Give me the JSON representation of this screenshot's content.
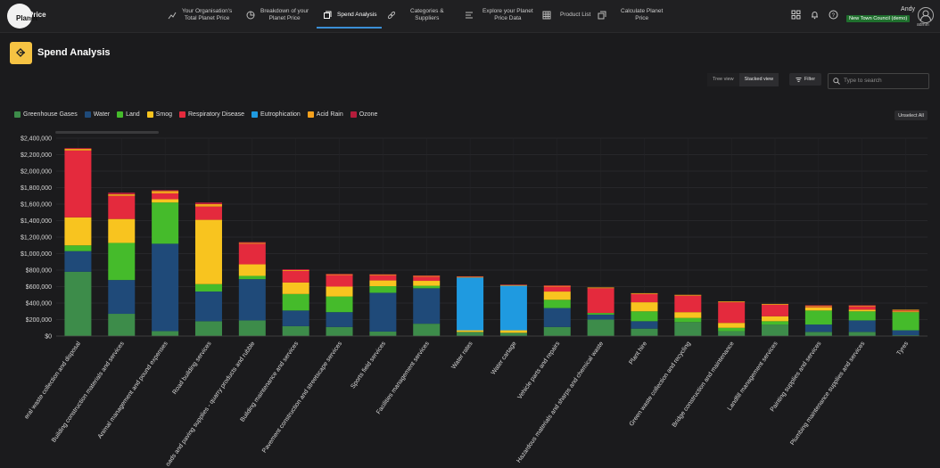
{
  "header": {
    "logo_text": "Planet",
    "logo_text2": "Price",
    "nav": [
      {
        "label_1": "Your Organisation's",
        "label_2": "Total Planet Price",
        "icon": "line-chart-icon"
      },
      {
        "label_1": "Breakdown of your",
        "label_2": "Planet Price",
        "icon": "pie-chart-icon"
      },
      {
        "label_1": "Spend Analysis",
        "label_2": "",
        "icon": "spend-icon"
      },
      {
        "label_1": "Categories &",
        "label_2": "Suppliers",
        "icon": "link-icon"
      },
      {
        "label_1": "Explore your Planet",
        "label_2": "Price Data",
        "icon": "data-icon"
      },
      {
        "label_1": "Product List",
        "label_2": "",
        "icon": "grid-icon"
      },
      {
        "label_1": "Calculate Planet",
        "label_2": "Price",
        "icon": "copy-icon"
      }
    ],
    "user_name": "Andy",
    "council_badge": "New Town Council (demo)",
    "user_role": "admin"
  },
  "page": {
    "title": "Spend Analysis",
    "view_options": [
      "Tree view",
      "Stacked view"
    ],
    "selected_view": "Stacked view",
    "filter_label": "Filter",
    "search_placeholder": "Type to search",
    "unselect_label": "Unselect All"
  },
  "colors": {
    "Greenhouse Gases": "#3d8c4a",
    "Water": "#1f4a79",
    "Land": "#45bb2b",
    "Smog": "#f8c41f",
    "Respiratory Disease": "#e42a3d",
    "Eutrophication": "#1f9ae0",
    "Acid Rain": "#f5a11d",
    "Ozone": "#b51c3b"
  },
  "chart_data": {
    "type": "bar",
    "stacked": true,
    "ylim": [
      0,
      2400000
    ],
    "yticks": [
      "$0",
      "$200,000",
      "$400,000",
      "$600,000",
      "$800,000",
      "$1,000,000",
      "$1,200,000",
      "$1,400,000",
      "$1,600,000",
      "$1,800,000",
      "$2,000,000",
      "$2,200,000",
      "$2,400,000"
    ],
    "categories": [
      "eral waste collection and disposal",
      "Building construction materials and services",
      "Animal management and pound expenses",
      "Road building services",
      "oads and paving supplies - quarry products and rubble",
      "Building maintenance and services",
      "Pavement construction and streetscape services",
      "Sports field services",
      "Facilities management services",
      "Water rates",
      "Water cartage",
      "Vehicle parts and repairs",
      "Hazardous materials and sharps and chemical waste",
      "Plant hire",
      "Green waste collection and recycling",
      "Bridge construction and maintenance",
      "Landfill management services",
      "Painting supplies and services",
      "Plumbing maintenance supplies and services",
      "Tyres"
    ],
    "series": [
      {
        "name": "Greenhouse Gases",
        "values": [
          780000,
          270000,
          60000,
          180000,
          190000,
          120000,
          110000,
          55000,
          150000,
          50000,
          40000,
          110000,
          200000,
          90000,
          170000,
          60000,
          140000,
          50000,
          50000,
          10000
        ]
      },
      {
        "name": "Water",
        "values": [
          250000,
          410000,
          1060000,
          360000,
          500000,
          190000,
          180000,
          470000,
          430000,
          0,
          0,
          230000,
          60000,
          90000,
          0,
          0,
          0,
          90000,
          140000,
          60000
        ]
      },
      {
        "name": "Land",
        "values": [
          70000,
          450000,
          500000,
          90000,
          40000,
          200000,
          190000,
          80000,
          30000,
          0,
          0,
          100000,
          20000,
          120000,
          50000,
          40000,
          40000,
          170000,
          110000,
          220000
        ]
      },
      {
        "name": "Smog",
        "values": [
          340000,
          290000,
          40000,
          780000,
          140000,
          140000,
          120000,
          70000,
          60000,
          20000,
          30000,
          100000,
          0,
          110000,
          70000,
          60000,
          60000,
          40000,
          20000,
          10000
        ]
      },
      {
        "name": "Respiratory Disease",
        "values": [
          810000,
          280000,
          70000,
          160000,
          250000,
          140000,
          140000,
          60000,
          50000,
          0,
          0,
          60000,
          300000,
          100000,
          200000,
          250000,
          140000,
          10000,
          40000,
          10000
        ]
      },
      {
        "name": "Eutrophication",
        "values": [
          0,
          0,
          0,
          0,
          0,
          0,
          0,
          0,
          0,
          640000,
          540000,
          0,
          0,
          0,
          0,
          0,
          0,
          0,
          0,
          0
        ]
      },
      {
        "name": "Acid Rain",
        "values": [
          20000,
          20000,
          30000,
          30000,
          10000,
          10000,
          10000,
          10000,
          10000,
          10000,
          10000,
          10000,
          10000,
          10000,
          10000,
          10000,
          10000,
          10000,
          10000,
          10000
        ]
      },
      {
        "name": "Ozone",
        "values": [
          10000,
          20000,
          10000,
          20000,
          10000,
          10000,
          5000,
          5000,
          5000,
          5000,
          5000,
          5000,
          0,
          0,
          0,
          0,
          0,
          5000,
          5000,
          0
        ]
      }
    ],
    "legend_position": "top-left",
    "grid": true
  }
}
